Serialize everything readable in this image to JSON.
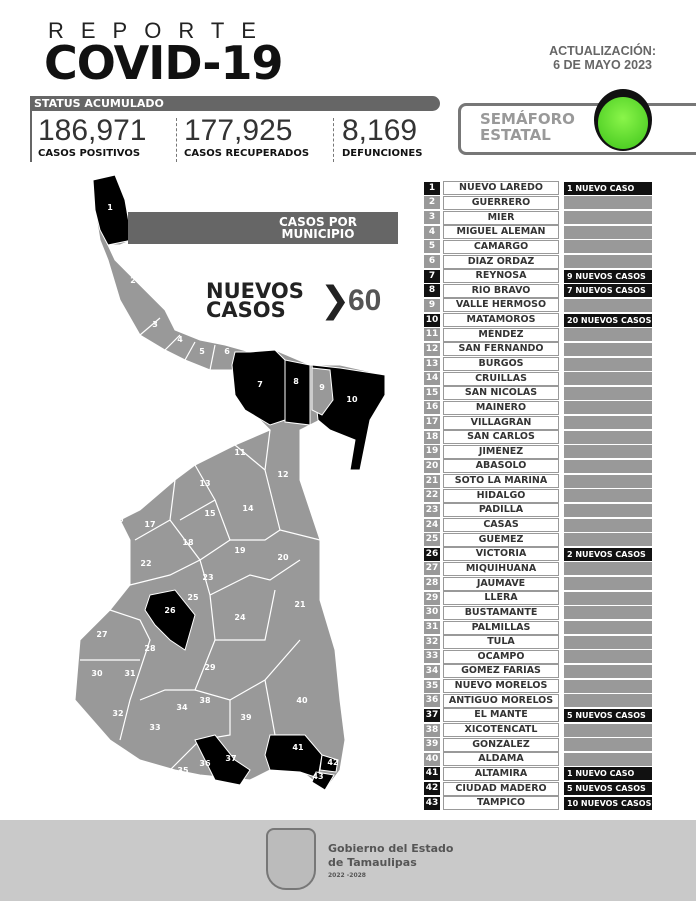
{
  "header": {
    "reporte": "REPORTE",
    "title": "COVID-19",
    "update_label": "ACTUALIZACIÓN:",
    "update_date": "6 DE MAYO 2023"
  },
  "status": {
    "label": "STATUS ACUMULADO",
    "stats": [
      {
        "value": "186,971",
        "label": "CASOS POSITIVOS"
      },
      {
        "value": "177,925",
        "label": "CASOS RECUPERADOS"
      },
      {
        "value": "8,169",
        "label": "DEFUNCIONES"
      }
    ]
  },
  "semaforo": {
    "label1": "SEMÁFORO",
    "label2": "ESTATAL",
    "color": "#3ec41a",
    "state": "verde"
  },
  "casos_municipio": {
    "label1": "CASOS POR",
    "label2": "MUNICIPIO"
  },
  "nuevos": {
    "label1": "NUEVOS",
    "label2": "CASOS",
    "value": "60"
  },
  "colors": {
    "with_cases": "#111111",
    "no_cases": "#999999"
  },
  "municipios": [
    {
      "num": "1",
      "name": "NUEVO LAREDO",
      "cases": "1 NUEVO CASO"
    },
    {
      "num": "2",
      "name": "GUERRERO",
      "cases": ""
    },
    {
      "num": "3",
      "name": "MIER",
      "cases": ""
    },
    {
      "num": "4",
      "name": "MIGUEL ALEMÁN",
      "cases": ""
    },
    {
      "num": "5",
      "name": "CAMARGO",
      "cases": ""
    },
    {
      "num": "6",
      "name": "DÍAZ ORDAZ",
      "cases": ""
    },
    {
      "num": "7",
      "name": "REYNOSA",
      "cases": "9 NUEVOS CASOS"
    },
    {
      "num": "8",
      "name": "RÍO BRAVO",
      "cases": "7 NUEVOS CASOS"
    },
    {
      "num": "9",
      "name": "VALLE HERMOSO",
      "cases": ""
    },
    {
      "num": "10",
      "name": "MATAMOROS",
      "cases": "20 NUEVOS CASOS"
    },
    {
      "num": "11",
      "name": "MÉNDEZ",
      "cases": ""
    },
    {
      "num": "12",
      "name": "SAN FERNANDO",
      "cases": ""
    },
    {
      "num": "13",
      "name": "BURGOS",
      "cases": ""
    },
    {
      "num": "14",
      "name": "CRUILLAS",
      "cases": ""
    },
    {
      "num": "15",
      "name": "SAN NICOLÁS",
      "cases": ""
    },
    {
      "num": "16",
      "name": "MAINERO",
      "cases": ""
    },
    {
      "num": "17",
      "name": "VILLAGRÁN",
      "cases": ""
    },
    {
      "num": "18",
      "name": "SAN CARLOS",
      "cases": ""
    },
    {
      "num": "19",
      "name": "JIMÉNEZ",
      "cases": ""
    },
    {
      "num": "20",
      "name": "ABASOLO",
      "cases": ""
    },
    {
      "num": "21",
      "name": "SOTO LA MARINA",
      "cases": ""
    },
    {
      "num": "22",
      "name": "HIDALGO",
      "cases": ""
    },
    {
      "num": "23",
      "name": "PADILLA",
      "cases": ""
    },
    {
      "num": "24",
      "name": "CASAS",
      "cases": ""
    },
    {
      "num": "25",
      "name": "GÜÉMEZ",
      "cases": ""
    },
    {
      "num": "26",
      "name": "VICTORIA",
      "cases": "2 NUEVOS CASOS"
    },
    {
      "num": "27",
      "name": "MIQUIHUANA",
      "cases": ""
    },
    {
      "num": "28",
      "name": "JAUMAVE",
      "cases": ""
    },
    {
      "num": "29",
      "name": "LLERA",
      "cases": ""
    },
    {
      "num": "30",
      "name": "BUSTAMANTE",
      "cases": ""
    },
    {
      "num": "31",
      "name": "PALMILLAS",
      "cases": ""
    },
    {
      "num": "32",
      "name": "TULA",
      "cases": ""
    },
    {
      "num": "33",
      "name": "OCAMPO",
      "cases": ""
    },
    {
      "num": "34",
      "name": "GÓMEZ FARÍAS",
      "cases": ""
    },
    {
      "num": "35",
      "name": "NUEVO MORELOS",
      "cases": ""
    },
    {
      "num": "36",
      "name": "ANTIGUO MORELOS",
      "cases": ""
    },
    {
      "num": "37",
      "name": "EL MANTE",
      "cases": "5 NUEVOS CASOS"
    },
    {
      "num": "38",
      "name": "XICOTÉNCATL",
      "cases": ""
    },
    {
      "num": "39",
      "name": "GONZÁLEZ",
      "cases": ""
    },
    {
      "num": "40",
      "name": "ALDAMA",
      "cases": ""
    },
    {
      "num": "41",
      "name": "ALTAMIRA",
      "cases": "1 NUEVO CASO"
    },
    {
      "num": "42",
      "name": "CIUDAD MADERO",
      "cases": "5 NUEVOS CASOS"
    },
    {
      "num": "43",
      "name": "TAMPICO",
      "cases": "10 NUEVOS CASOS"
    }
  ],
  "footer": {
    "gov1": "Gobierno del Estado",
    "gov2": "de Tamaulipas",
    "years": "2022 -2028"
  }
}
